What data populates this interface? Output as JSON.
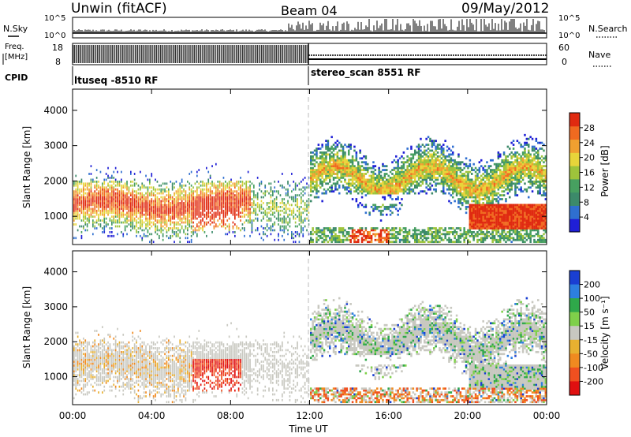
{
  "header": {
    "station": "Unwin (fitACF)",
    "beam": "Beam 04",
    "date": "09/May/2012"
  },
  "strip_labels": {
    "nsky": "N.Sky",
    "nsearch": "N.Search",
    "freq_line1": "Freq.",
    "freq_line2": "[MHz]",
    "nave": "Nave",
    "cpid": "CPID",
    "nsky_ticks": [
      "10^5",
      "10^0"
    ],
    "nsearch_ticks": [
      "10^5",
      "10^0"
    ],
    "freq_ticks": [
      "18",
      "8"
    ],
    "nave_ticks": [
      "60",
      "0"
    ]
  },
  "cpid_segments": [
    {
      "label": "ltuseq -8510 RF",
      "start": "00:00",
      "end": "12:00"
    },
    {
      "label": "stereo_scan 8551 RF",
      "start": "12:00",
      "end": "24:00"
    }
  ],
  "colors": {
    "power_scale": [
      "#1f1fd6",
      "#2f6fd0",
      "#3c8a6a",
      "#47a060",
      "#9ec43b",
      "#e8d53a",
      "#f0a030",
      "#f06a20",
      "#e02a10"
    ],
    "velocity_scale": [
      "#1a3fd2",
      "#2d7fe0",
      "#2fa84a",
      "#7fd04a",
      "#c8c8c0",
      "#e8b030",
      "#f08a20",
      "#f05020",
      "#e01010"
    ]
  },
  "chart_data": [
    {
      "type": "heatmap",
      "panel": "power",
      "x_ticks": [
        "00:00",
        "04:00",
        "08:00",
        "12:00",
        "16:00",
        "20:00",
        "00:00"
      ],
      "y_ticks": [
        "1000",
        "2000",
        "3000",
        "4000"
      ],
      "ylabel": "Slant Range [km]",
      "ylim": [
        200,
        4600
      ],
      "colorbar": {
        "label": "Power [dB]",
        "ticks": [
          "4",
          "8",
          "12",
          "16",
          "20",
          "24",
          "28"
        ]
      }
    },
    {
      "type": "heatmap",
      "panel": "velocity",
      "x_ticks": [
        "00:00",
        "04:00",
        "08:00",
        "12:00",
        "16:00",
        "20:00",
        "00:00"
      ],
      "y_ticks": [
        "1000",
        "2000",
        "3000",
        "4000"
      ],
      "ylabel": "Slant Range [km]",
      "xlabel": "Time UT",
      "ylim": [
        200,
        4600
      ],
      "colorbar": {
        "label": "Velocity [m s⁻¹]",
        "ticks": [
          "200",
          "100",
          "50",
          "15",
          "-15",
          "-50",
          "-100",
          "-200"
        ]
      }
    }
  ]
}
